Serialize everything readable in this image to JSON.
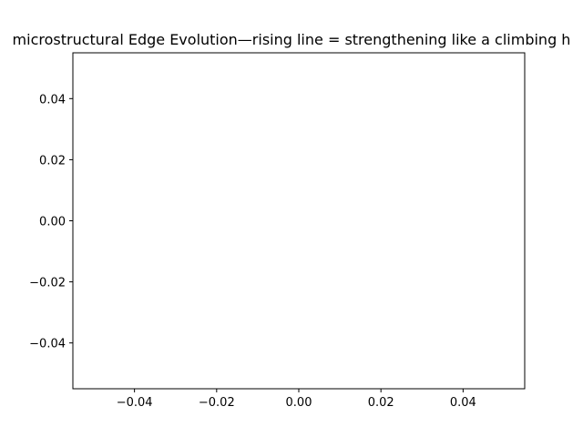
{
  "chart_data": {
    "type": "line",
    "title": "microstructural Edge Evolution—rising line = strengthening like a climbing h",
    "xlabel": "",
    "ylabel": "",
    "xlim": [
      -0.055,
      0.055
    ],
    "ylim": [
      -0.055,
      0.055
    ],
    "x_ticks": [
      -0.04,
      -0.02,
      0.0,
      0.02,
      0.04
    ],
    "x_tick_labels": [
      "−0.04",
      "−0.02",
      "0.00",
      "0.02",
      "0.04"
    ],
    "y_ticks": [
      -0.04,
      -0.02,
      0.0,
      0.02,
      0.04
    ],
    "y_tick_labels": [
      "−0.04",
      "−0.02",
      "0.00",
      "0.02",
      "0.04"
    ],
    "series": [],
    "grid": false,
    "legend": "none"
  }
}
